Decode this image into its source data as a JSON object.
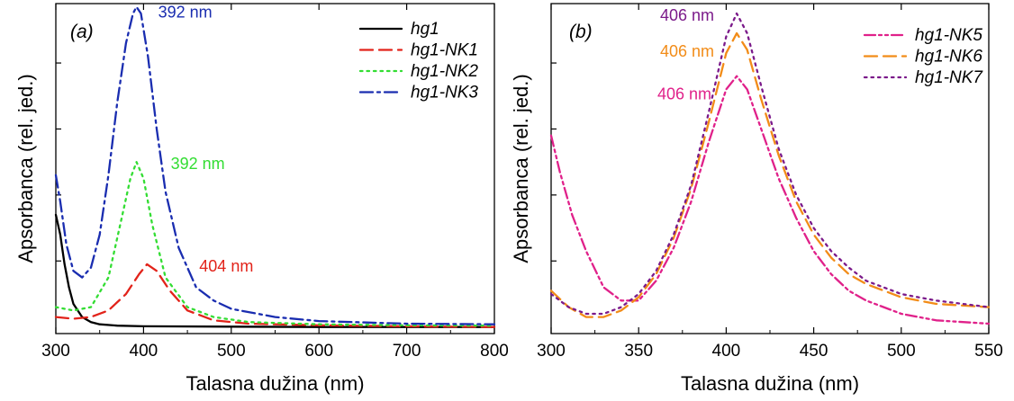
{
  "chart_data": [
    {
      "panel": "(a)",
      "type": "line",
      "title": "",
      "xlabel": "Talasna dužina (nm)",
      "ylabel": "Apsorbanca (rel. jed.)",
      "xlim": [
        300,
        800
      ],
      "ylim": [
        0,
        1.0
      ],
      "x_ticks": [
        "300",
        "400",
        "500",
        "600",
        "700",
        "800"
      ],
      "y_tick_labels": false,
      "legend_position": "top-right",
      "series": [
        {
          "name": "hg1",
          "color": "#000000",
          "dash": "solid",
          "points": [
            [
              300,
              0.36
            ],
            [
              305,
              0.3
            ],
            [
              310,
              0.21
            ],
            [
              315,
              0.14
            ],
            [
              320,
              0.09
            ],
            [
              330,
              0.05
            ],
            [
              340,
              0.035
            ],
            [
              350,
              0.028
            ],
            [
              370,
              0.024
            ],
            [
              400,
              0.022
            ],
            [
              500,
              0.021
            ],
            [
              600,
              0.02
            ],
            [
              700,
              0.02
            ],
            [
              800,
              0.02
            ]
          ]
        },
        {
          "name": "hg1-NK1",
          "color": "#e2231a",
          "dash": "dashed",
          "points": [
            [
              300,
              0.05
            ],
            [
              320,
              0.045
            ],
            [
              340,
              0.05
            ],
            [
              360,
              0.07
            ],
            [
              380,
              0.12
            ],
            [
              395,
              0.18
            ],
            [
              404,
              0.21
            ],
            [
              415,
              0.19
            ],
            [
              430,
              0.13
            ],
            [
              450,
              0.07
            ],
            [
              480,
              0.04
            ],
            [
              520,
              0.03
            ],
            [
              600,
              0.025
            ],
            [
              700,
              0.022
            ],
            [
              800,
              0.02
            ]
          ]
        },
        {
          "name": "hg1-NK2",
          "color": "#33dd33",
          "dash": "dotted",
          "points": [
            [
              300,
              0.08
            ],
            [
              320,
              0.07
            ],
            [
              340,
              0.08
            ],
            [
              360,
              0.17
            ],
            [
              375,
              0.35
            ],
            [
              385,
              0.47
            ],
            [
              392,
              0.52
            ],
            [
              400,
              0.47
            ],
            [
              410,
              0.33
            ],
            [
              425,
              0.17
            ],
            [
              450,
              0.08
            ],
            [
              480,
              0.05
            ],
            [
              520,
              0.035
            ],
            [
              600,
              0.028
            ],
            [
              700,
              0.025
            ],
            [
              800,
              0.024
            ]
          ]
        },
        {
          "name": "hg1-NK3",
          "color": "#1a2db0",
          "dash": "dashdot",
          "points": [
            [
              300,
              0.48
            ],
            [
              305,
              0.4
            ],
            [
              312,
              0.27
            ],
            [
              320,
              0.19
            ],
            [
              330,
              0.17
            ],
            [
              340,
              0.2
            ],
            [
              350,
              0.3
            ],
            [
              360,
              0.48
            ],
            [
              370,
              0.7
            ],
            [
              380,
              0.88
            ],
            [
              388,
              0.97
            ],
            [
              392,
              0.99
            ],
            [
              397,
              0.97
            ],
            [
              405,
              0.84
            ],
            [
              415,
              0.62
            ],
            [
              425,
              0.43
            ],
            [
              440,
              0.26
            ],
            [
              460,
              0.14
            ],
            [
              480,
              0.1
            ],
            [
              500,
              0.075
            ],
            [
              550,
              0.05
            ],
            [
              600,
              0.038
            ],
            [
              700,
              0.03
            ],
            [
              800,
              0.028
            ]
          ]
        }
      ],
      "annotations": [
        {
          "text": "392 nm",
          "color": "#1a2db0",
          "x": 392,
          "y": 0.99
        },
        {
          "text": "392 nm",
          "color": "#33dd33",
          "x": 392,
          "y": 0.52
        },
        {
          "text": "404 nm",
          "color": "#e2231a",
          "x": 404,
          "y": 0.21
        }
      ]
    },
    {
      "panel": "(b)",
      "type": "line",
      "title": "",
      "xlabel": "Talasna dužina (nm)",
      "ylabel": "Apsorbanca (rel. jed.)",
      "xlim": [
        300,
        550
      ],
      "ylim": [
        0,
        1.0
      ],
      "x_ticks": [
        "300",
        "350",
        "400",
        "450",
        "500",
        "550"
      ],
      "y_tick_labels": false,
      "legend_position": "top-right",
      "series": [
        {
          "name": "hg1-NK5",
          "color": "#e0218a",
          "dash": "dashdotdot",
          "points": [
            [
              300,
              0.6
            ],
            [
              305,
              0.49
            ],
            [
              312,
              0.36
            ],
            [
              320,
              0.25
            ],
            [
              330,
              0.14
            ],
            [
              340,
              0.1
            ],
            [
              350,
              0.1
            ],
            [
              360,
              0.16
            ],
            [
              370,
              0.26
            ],
            [
              380,
              0.4
            ],
            [
              390,
              0.58
            ],
            [
              400,
              0.74
            ],
            [
              406,
              0.78
            ],
            [
              412,
              0.74
            ],
            [
              420,
              0.62
            ],
            [
              430,
              0.47
            ],
            [
              440,
              0.35
            ],
            [
              450,
              0.25
            ],
            [
              460,
              0.18
            ],
            [
              470,
              0.13
            ],
            [
              480,
              0.1
            ],
            [
              500,
              0.06
            ],
            [
              520,
              0.04
            ],
            [
              550,
              0.03
            ]
          ]
        },
        {
          "name": "hg1-NK6",
          "color": "#f28c18",
          "dash": "dashed",
          "points": [
            [
              300,
              0.13
            ],
            [
              310,
              0.08
            ],
            [
              320,
              0.05
            ],
            [
              330,
              0.05
            ],
            [
              340,
              0.07
            ],
            [
              350,
              0.11
            ],
            [
              360,
              0.18
            ],
            [
              370,
              0.29
            ],
            [
              380,
              0.44
            ],
            [
              390,
              0.64
            ],
            [
              400,
              0.85
            ],
            [
              406,
              0.91
            ],
            [
              412,
              0.86
            ],
            [
              420,
              0.71
            ],
            [
              430,
              0.54
            ],
            [
              440,
              0.4
            ],
            [
              450,
              0.3
            ],
            [
              460,
              0.23
            ],
            [
              470,
              0.18
            ],
            [
              480,
              0.15
            ],
            [
              500,
              0.11
            ],
            [
              520,
              0.09
            ],
            [
              550,
              0.08
            ]
          ]
        },
        {
          "name": "hg1-NK7",
          "color": "#7b1a8a",
          "dash": "dotted",
          "points": [
            [
              300,
              0.12
            ],
            [
              310,
              0.08
            ],
            [
              320,
              0.06
            ],
            [
              330,
              0.06
            ],
            [
              340,
              0.08
            ],
            [
              350,
              0.12
            ],
            [
              360,
              0.19
            ],
            [
              370,
              0.3
            ],
            [
              380,
              0.45
            ],
            [
              390,
              0.67
            ],
            [
              400,
              0.9
            ],
            [
              406,
              0.97
            ],
            [
              412,
              0.91
            ],
            [
              420,
              0.75
            ],
            [
              430,
              0.56
            ],
            [
              440,
              0.42
            ],
            [
              450,
              0.32
            ],
            [
              460,
              0.25
            ],
            [
              470,
              0.2
            ],
            [
              480,
              0.16
            ],
            [
              500,
              0.12
            ],
            [
              520,
              0.1
            ],
            [
              550,
              0.08
            ]
          ]
        }
      ],
      "annotations": [
        {
          "text": "406 nm",
          "color": "#7b1a8a",
          "x": 406,
          "y": 0.97
        },
        {
          "text": "406 nm",
          "color": "#f28c18",
          "x": 406,
          "y": 0.91
        },
        {
          "text": "406 nm",
          "color": "#e0218a",
          "x": 406,
          "y": 0.78
        }
      ]
    }
  ]
}
